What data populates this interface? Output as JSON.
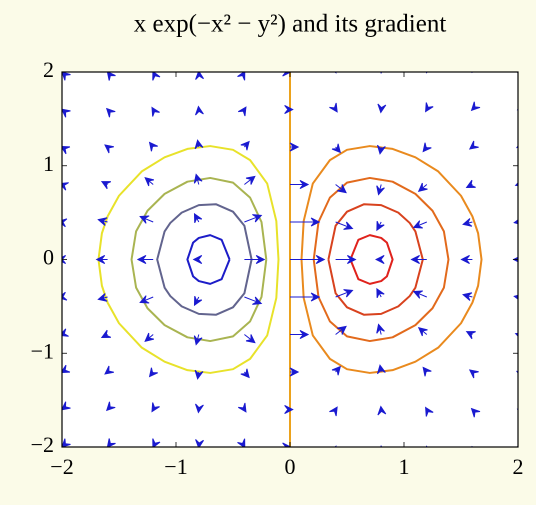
{
  "chart_data": {
    "type": "contour",
    "title": "x exp(−x² − y²) and its gradient",
    "xlim": [
      -2,
      2
    ],
    "ylim": [
      -2,
      2
    ],
    "xticks": [
      {
        "value": -2,
        "label": "−2"
      },
      {
        "value": -1,
        "label": "−1"
      },
      0,
      1,
      2
    ],
    "yticks": [
      {
        "value": -2,
        "label": "−2"
      },
      {
        "value": -1,
        "label": "−1"
      },
      0,
      1,
      2
    ],
    "contours": [
      {
        "color": "#1c1cc8",
        "x": [
          -0.53,
          -0.6,
          -0.7,
          -0.8,
          -0.85,
          -0.9,
          -0.85,
          -0.8,
          -0.7,
          -0.6,
          -0.53
        ],
        "y": [
          0,
          0.21,
          0.26,
          0.23,
          0.18,
          0,
          -0.18,
          -0.23,
          -0.26,
          -0.21,
          0
        ]
      },
      {
        "color": "#62648e",
        "x": [
          -0.337,
          -0.4,
          -0.5,
          -0.65,
          -0.8,
          -0.95,
          -1.05,
          -1.1,
          -1.165,
          -1.1,
          -1.05,
          -0.95,
          -0.8,
          -0.65,
          -0.5,
          -0.4,
          -0.337
        ],
        "y": [
          0,
          0.36,
          0.51,
          0.59,
          0.58,
          0.5,
          0.39,
          0.3,
          0,
          -0.3,
          -0.39,
          -0.5,
          -0.58,
          -0.59,
          -0.51,
          -0.36,
          0
        ]
      },
      {
        "color": "#a9b451",
        "x": [
          -0.208,
          -0.25,
          -0.35,
          -0.5,
          -0.7,
          -0.9,
          -1.1,
          -1.25,
          -1.35,
          -1.39,
          -1.35,
          -1.25,
          -1.1,
          -0.9,
          -0.7,
          -0.5,
          -0.35,
          -0.25,
          -0.208
        ],
        "y": [
          0,
          0.4,
          0.66,
          0.82,
          0.87,
          0.83,
          0.7,
          0.52,
          0.3,
          0,
          -0.3,
          -0.52,
          -0.7,
          -0.83,
          -0.87,
          -0.82,
          -0.66,
          -0.4,
          0
        ]
      },
      {
        "color": "#e8e22a",
        "x": [
          -0.101,
          -0.12,
          -0.2,
          -0.35,
          -0.5,
          -0.7,
          -0.9,
          -1.1,
          -1.3,
          -1.5,
          -1.6,
          -1.65,
          -1.68,
          -1.65,
          -1.6,
          -1.5,
          -1.3,
          -1.1,
          -0.9,
          -0.7,
          -0.5,
          -0.35,
          -0.2,
          -0.12,
          -0.101
        ],
        "y": [
          0,
          0.41,
          0.81,
          1.06,
          1.17,
          1.21,
          1.18,
          1.09,
          0.94,
          0.68,
          0.46,
          0.28,
          0,
          -0.28,
          -0.46,
          -0.68,
          -0.94,
          -1.09,
          -1.18,
          -1.21,
          -1.17,
          -1.06,
          -0.81,
          -0.41,
          0
        ]
      },
      {
        "color": "#eca21c",
        "x": [
          0,
          0
        ],
        "y": [
          -2,
          2
        ]
      },
      {
        "color": "#e98a1e",
        "x": [
          0.101,
          0.12,
          0.2,
          0.35,
          0.5,
          0.7,
          0.9,
          1.1,
          1.3,
          1.5,
          1.6,
          1.65,
          1.68,
          1.65,
          1.6,
          1.5,
          1.3,
          1.1,
          0.9,
          0.7,
          0.5,
          0.35,
          0.2,
          0.12,
          0.101
        ],
        "y": [
          0,
          0.41,
          0.81,
          1.06,
          1.17,
          1.21,
          1.18,
          1.09,
          0.94,
          0.68,
          0.46,
          0.28,
          0,
          -0.28,
          -0.46,
          -0.68,
          -0.94,
          -1.09,
          -1.18,
          -1.21,
          -1.17,
          -1.06,
          -0.81,
          -0.41,
          0
        ]
      },
      {
        "color": "#e26a1c",
        "x": [
          0.208,
          0.25,
          0.35,
          0.5,
          0.7,
          0.9,
          1.1,
          1.25,
          1.35,
          1.39,
          1.35,
          1.25,
          1.1,
          0.9,
          0.7,
          0.5,
          0.35,
          0.25,
          0.208
        ],
        "y": [
          0,
          0.4,
          0.66,
          0.82,
          0.87,
          0.83,
          0.7,
          0.52,
          0.3,
          0,
          -0.3,
          -0.52,
          -0.7,
          -0.83,
          -0.87,
          -0.82,
          -0.66,
          -0.4,
          0
        ]
      },
      {
        "color": "#d8421e",
        "x": [
          0.337,
          0.4,
          0.5,
          0.65,
          0.8,
          0.95,
          1.05,
          1.1,
          1.165,
          1.1,
          1.05,
          0.95,
          0.8,
          0.65,
          0.5,
          0.4,
          0.337
        ],
        "y": [
          0,
          0.36,
          0.51,
          0.59,
          0.58,
          0.5,
          0.39,
          0.3,
          0,
          -0.3,
          -0.39,
          -0.5,
          -0.58,
          -0.59,
          -0.51,
          -0.36,
          0
        ]
      },
      {
        "color": "#e0221c",
        "x": [
          0.53,
          0.6,
          0.7,
          0.8,
          0.85,
          0.9,
          0.85,
          0.8,
          0.7,
          0.6,
          0.53
        ],
        "y": [
          0,
          0.21,
          0.26,
          0.23,
          0.18,
          0,
          -0.18,
          -0.23,
          -0.26,
          -0.21,
          0
        ]
      }
    ],
    "quiver": {
      "color": "#1a1ad0",
      "x": [
        -2,
        -1.6,
        -1.2,
        -0.8,
        -0.4,
        0,
        0.4,
        0.8,
        1.2,
        1.6,
        2
      ],
      "y": [
        -2,
        -1.6,
        -1.2,
        -0.8,
        -0.4,
        0,
        0.4,
        0.8,
        1.2,
        1.6,
        2
      ],
      "u": [
        [
          -0.0023,
          -0.0058,
          -0.0082,
          -0.0027,
          0.0106,
          0.0183,
          0.0106,
          -0.0027,
          -0.0082,
          -0.0058,
          -0.0023
        ],
        [
          -0.0099,
          -0.0246,
          -0.0345,
          -0.0114,
          0.0448,
          0.0773,
          0.0448,
          -0.0114,
          -0.0345,
          -0.0246,
          -0.0099
        ],
        [
          -0.0303,
          -0.0754,
          -0.1057,
          -0.0351,
          0.1372,
          0.237,
          0.1372,
          -0.0351,
          -0.1057,
          -0.0754,
          -0.0303
        ],
        [
          -0.0675,
          -0.1676,
          -0.235,
          -0.078,
          0.3051,
          0.527,
          0.3051,
          -0.078,
          -0.235,
          -0.1676,
          -0.0675
        ],
        [
          -0.1091,
          -0.2709,
          -0.38,
          -0.1261,
          0.4933,
          0.852,
          0.4933,
          -0.1261,
          -0.38,
          -0.2709,
          -0.1091
        ],
        [
          -0.128,
          -0.318,
          -0.446,
          -0.148,
          0.579,
          1,
          0.579,
          -0.148,
          -0.446,
          -0.318,
          -0.128
        ],
        [
          -0.1091,
          -0.2709,
          -0.38,
          -0.1261,
          0.4933,
          0.852,
          0.4933,
          -0.1261,
          -0.38,
          -0.2709,
          -0.1091
        ],
        [
          -0.0675,
          -0.1676,
          -0.235,
          -0.078,
          0.3051,
          0.527,
          0.3051,
          -0.078,
          -0.235,
          -0.1676,
          -0.0675
        ],
        [
          -0.0303,
          -0.0754,
          -0.1057,
          -0.0351,
          0.1372,
          0.237,
          0.1372,
          -0.0351,
          -0.1057,
          -0.0754,
          -0.0303
        ],
        [
          -0.0099,
          -0.0246,
          -0.0345,
          -0.0114,
          0.0448,
          0.0773,
          0.0448,
          -0.0114,
          -0.0345,
          -0.0246,
          -0.0099
        ],
        [
          -0.0023,
          -0.0058,
          -0.0082,
          -0.0027,
          0.0106,
          0.0183,
          0.0106,
          -0.0027,
          -0.0082,
          -0.0058,
          -0.0023
        ]
      ],
      "v": [
        [
          -0.0027,
          -0.009,
          -0.0208,
          -0.0309,
          -0.025,
          0,
          0.025,
          0.0309,
          0.0208,
          0.009,
          0.0027
        ],
        [
          -0.009,
          -0.0306,
          -0.0704,
          -0.1043,
          -0.0844,
          0,
          0.0844,
          0.1043,
          0.0704,
          0.0306,
          0.009
        ],
        [
          -0.0207,
          -0.0701,
          -0.1616,
          -0.2394,
          -0.1937,
          0,
          0.1937,
          0.2394,
          0.1616,
          0.0701,
          0.0207
        ],
        [
          -0.0308,
          -0.1041,
          -0.2399,
          -0.3554,
          -0.2875,
          0,
          0.2875,
          0.3554,
          0.2399,
          0.1041,
          0.0308
        ],
        [
          -0.0249,
          -0.0842,
          -0.1939,
          -0.2873,
          -0.2324,
          0,
          0.2324,
          0.2873,
          0.1939,
          0.0842,
          0.0249
        ],
        [
          0,
          0,
          0,
          0,
          0,
          0,
          0,
          0,
          0,
          0,
          0
        ],
        [
          0.0249,
          0.0842,
          0.1939,
          0.2873,
          0.2324,
          0,
          -0.2324,
          -0.2873,
          -0.1939,
          -0.0842,
          -0.0249
        ],
        [
          0.0308,
          0.1041,
          0.2399,
          0.3554,
          0.2875,
          0,
          -0.2875,
          -0.3554,
          -0.2399,
          -0.1041,
          -0.0308
        ],
        [
          0.0207,
          0.0701,
          0.1616,
          0.2394,
          0.1937,
          0,
          -0.1937,
          -0.2394,
          -0.1616,
          -0.0701,
          -0.0207
        ],
        [
          0.009,
          0.0306,
          0.0704,
          0.1043,
          0.0844,
          0,
          -0.0844,
          -0.1043,
          -0.0704,
          -0.0306,
          -0.009
        ],
        [
          0.0027,
          0.009,
          0.0208,
          0.0309,
          0.025,
          0,
          -0.025,
          -0.0309,
          -0.0208,
          -0.009,
          -0.0027
        ]
      ]
    }
  }
}
